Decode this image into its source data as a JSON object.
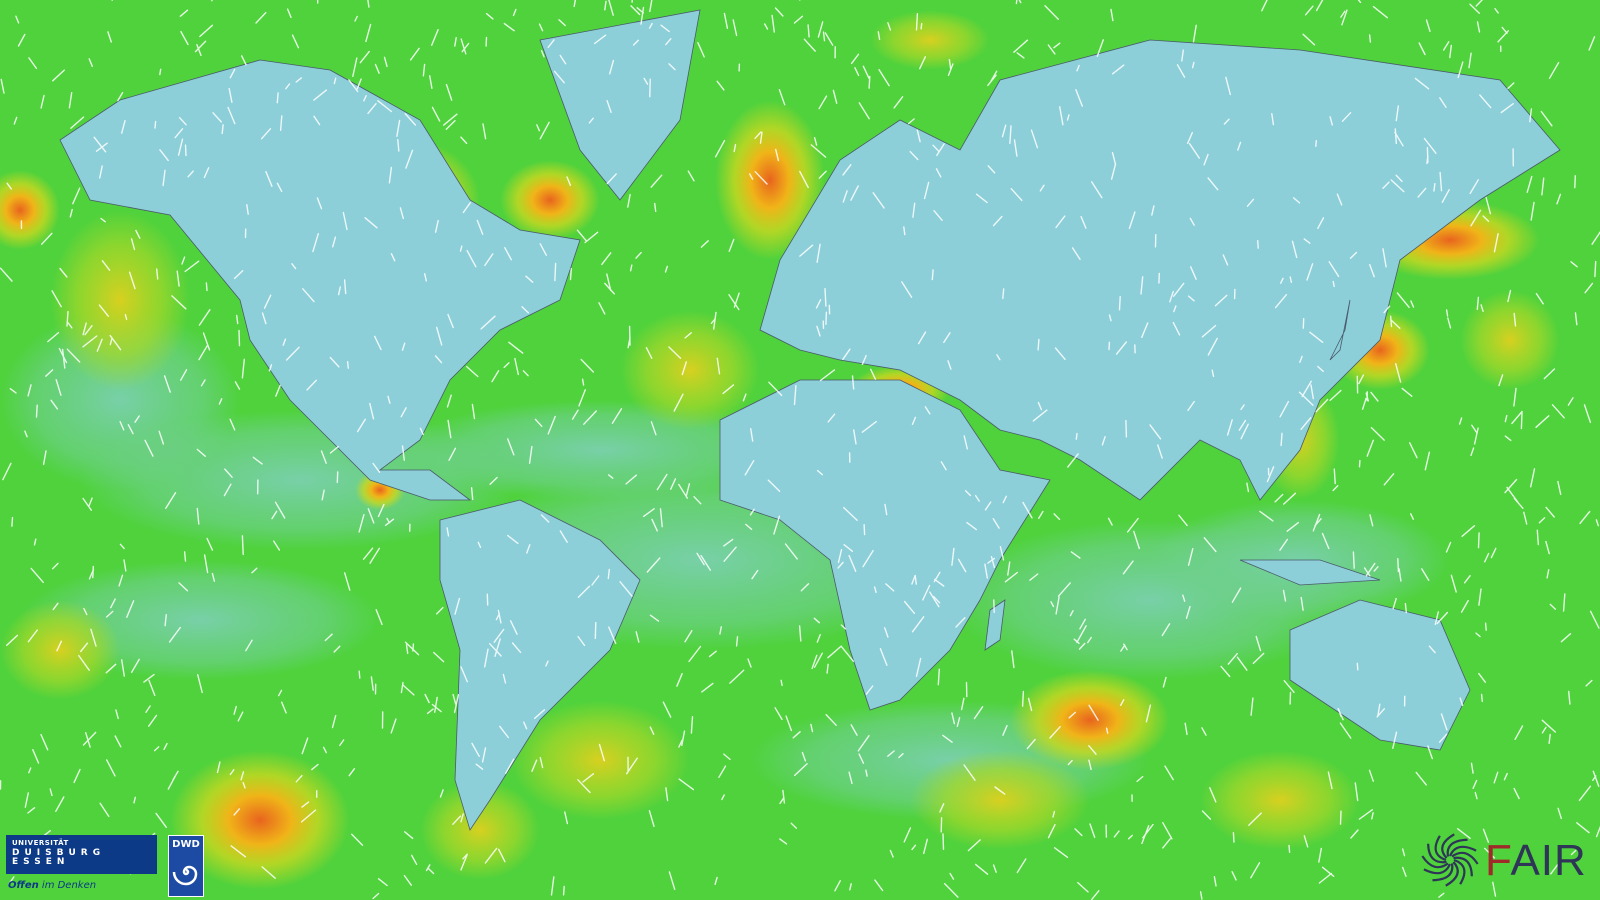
{
  "map": {
    "type": "wind-speed-world-map",
    "projection": "mercator",
    "land_color": "#8ccfd8",
    "ocean_base_color": "#4fd23c",
    "high_wind_colors": [
      "#c8d820",
      "#f0b418",
      "#e8641e"
    ],
    "streak_color": "#ffffff",
    "border_color": "#4a5a6a"
  },
  "logos": {
    "ude": {
      "line1": "UNIVERSITÄT",
      "line2": "DUISBURG",
      "line3": "ESSEN",
      "slogan_bold": "Offen",
      "slogan_rest": " im Denken"
    },
    "dwd": {
      "text": "DWD"
    },
    "fair": {
      "first_letter": "F",
      "rest": "AIR"
    }
  }
}
